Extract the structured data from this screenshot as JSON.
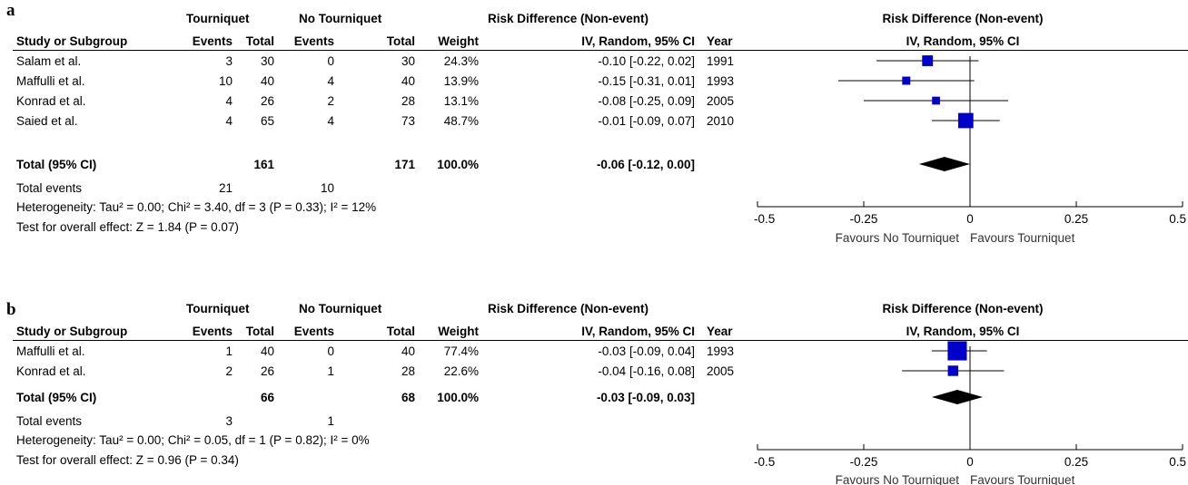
{
  "columns": {
    "study": "Study or Subgroup",
    "group1": "Tourniquet",
    "group2": "No Tourniquet",
    "events": "Events",
    "total": "Total",
    "weight": "Weight",
    "effect_title": "Risk Difference (Non-event)",
    "effect_method": "IV, Random, 95% CI",
    "year": "Year"
  },
  "panels": [
    {
      "letter": "a",
      "studies": [
        {
          "name": "Salam et al.",
          "e1": "3",
          "t1": "30",
          "e2": "0",
          "t2": "30",
          "weight": "24.3%",
          "ci": "-0.10 [-0.22, 0.02]",
          "year": "1991"
        },
        {
          "name": "Maffulli et al.",
          "e1": "10",
          "t1": "40",
          "e2": "4",
          "t2": "40",
          "weight": "13.9%",
          "ci": "-0.15 [-0.31, 0.01]",
          "year": "1993"
        },
        {
          "name": "Konrad et al.",
          "e1": "4",
          "t1": "26",
          "e2": "2",
          "t2": "28",
          "weight": "13.1%",
          "ci": "-0.08 [-0.25, 0.09]",
          "year": "2005"
        },
        {
          "name": "Saied et al.",
          "e1": "4",
          "t1": "65",
          "e2": "4",
          "t2": "73",
          "weight": "48.7%",
          "ci": "-0.01 [-0.09, 0.07]",
          "year": "2010"
        }
      ],
      "total": {
        "label": "Total (95% CI)",
        "t1": "161",
        "t2": "171",
        "weight": "100.0%",
        "ci": "-0.06 [-0.12, 0.00]"
      },
      "total_events": {
        "label": "Total events",
        "e1": "21",
        "e2": "10"
      },
      "heterogeneity": "Heterogeneity: Tau² = 0.00; Chi² = 3.40, df = 3 (P = 0.33); I² = 12%",
      "overall_test": "Test for overall effect: Z = 1.84 (P = 0.07)",
      "favours_left": "Favours No Tourniquet",
      "favours_right": "Favours Tourniquet"
    },
    {
      "letter": "b",
      "studies": [
        {
          "name": "Maffulli et al.",
          "e1": "1",
          "t1": "40",
          "e2": "0",
          "t2": "40",
          "weight": "77.4%",
          "ci": "-0.03 [-0.09, 0.04]",
          "year": "1993"
        },
        {
          "name": "Konrad et al.",
          "e1": "2",
          "t1": "26",
          "e2": "1",
          "t2": "28",
          "weight": "22.6%",
          "ci": "-0.04 [-0.16, 0.08]",
          "year": "2005"
        }
      ],
      "total": {
        "label": "Total (95% CI)",
        "t1": "66",
        "t2": "68",
        "weight": "100.0%",
        "ci": "-0.03 [-0.09, 0.03]"
      },
      "total_events": {
        "label": "Total events",
        "e1": "3",
        "e2": "1"
      },
      "heterogeneity": "Heterogeneity: Tau² = 0.00; Chi² = 0.05, df = 1 (P = 0.82); I² = 0%",
      "overall_test": "Test for overall effect: Z = 0.96 (P = 0.34)",
      "favours_left": "Favours No Tourniquet",
      "favours_right": "Favours Tourniquet"
    }
  ],
  "colors": {
    "marker": "#0000cc",
    "diamond": "#000000",
    "axis": "#000000"
  },
  "chart_data": [
    {
      "type": "forest",
      "title": "Risk Difference (Non-event)",
      "subtitle": "IV, Random, 95% CI",
      "xlim": [
        -0.5,
        0.5
      ],
      "x_ticks": [
        "-0.5",
        "-0.25",
        "0",
        "0.25",
        "0.5"
      ],
      "x_tick_values": [
        -0.5,
        -0.25,
        0,
        0.25,
        0.5
      ],
      "categories": [
        "Salam et al.",
        "Maffulli et al.",
        "Konrad et al.",
        "Saied et al."
      ],
      "estimates": [
        -0.1,
        -0.15,
        -0.08,
        -0.01
      ],
      "ci_low": [
        -0.22,
        -0.31,
        -0.25,
        -0.09
      ],
      "ci_high": [
        0.02,
        0.01,
        0.09,
        0.07
      ],
      "weights": [
        24.3,
        13.9,
        13.1,
        48.7
      ],
      "pooled": {
        "estimate": -0.06,
        "ci_low": -0.12,
        "ci_high": 0.0
      }
    },
    {
      "type": "forest",
      "title": "Risk Difference (Non-event)",
      "subtitle": "IV, Random, 95% CI",
      "xlim": [
        -0.5,
        0.5
      ],
      "x_ticks": [
        "-0.5",
        "-0.25",
        "0",
        "0.25",
        "0.5"
      ],
      "x_tick_values": [
        -0.5,
        -0.25,
        0,
        0.25,
        0.5
      ],
      "categories": [
        "Maffulli et al.",
        "Konrad et al."
      ],
      "estimates": [
        -0.03,
        -0.04
      ],
      "ci_low": [
        -0.09,
        -0.16
      ],
      "ci_high": [
        0.04,
        0.08
      ],
      "weights": [
        77.4,
        22.6
      ],
      "pooled": {
        "estimate": -0.03,
        "ci_low": -0.09,
        "ci_high": 0.03
      }
    }
  ]
}
